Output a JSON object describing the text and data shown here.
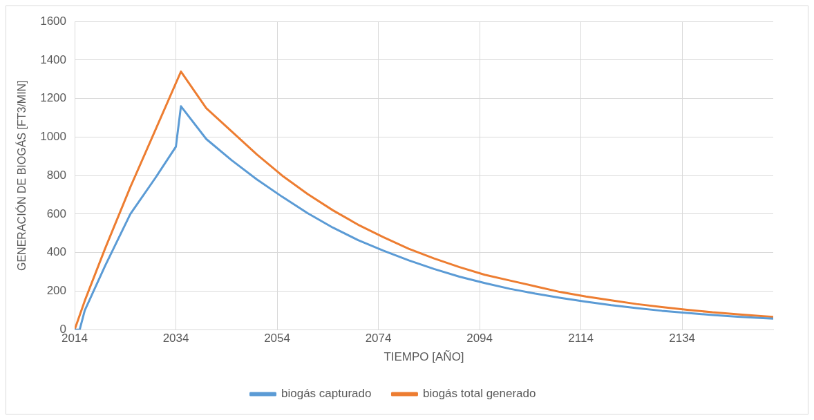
{
  "chart_data": {
    "type": "line",
    "xlabel": "TIEMPO [AÑO]",
    "ylabel": "GENERACIÓN DE BIOGÁS [FT3/MIN]",
    "xlim": [
      2014,
      2152
    ],
    "xticks": [
      2014,
      2034,
      2054,
      2074,
      2094,
      2114,
      2134
    ],
    "ylim": [
      0,
      1600
    ],
    "yticks": [
      0,
      200,
      400,
      600,
      800,
      1000,
      1200,
      1400,
      1600
    ],
    "grid": true,
    "legend": "bottom",
    "marker": "none",
    "line_style": "solid",
    "series": [
      {
        "name": "biogás capturado",
        "color": "#5b9bd5",
        "x": [
          2014,
          2015,
          2016,
          2020,
          2025,
          2030,
          2034,
          2035,
          2040,
          2045,
          2050,
          2055,
          2060,
          2065,
          2070,
          2075,
          2080,
          2085,
          2090,
          2095,
          2100,
          2105,
          2110,
          2115,
          2120,
          2125,
          2130,
          2135,
          2140,
          2145,
          2150,
          2152
        ],
        "values": [
          0,
          0,
          100,
          330,
          600,
          790,
          950,
          1160,
          990,
          880,
          780,
          690,
          605,
          530,
          465,
          410,
          360,
          315,
          275,
          242,
          212,
          187,
          165,
          145,
          127,
          112,
          98,
          87,
          76,
          67,
          60,
          57
        ]
      },
      {
        "name": "biogás total generado",
        "color": "#ed7d31",
        "x": [
          2014,
          2016,
          2020,
          2025,
          2030,
          2035,
          2040,
          2045,
          2050,
          2055,
          2060,
          2065,
          2070,
          2075,
          2080,
          2085,
          2090,
          2095,
          2100,
          2105,
          2110,
          2115,
          2120,
          2125,
          2130,
          2135,
          2140,
          2145,
          2150,
          2152
        ],
        "values": [
          0,
          150,
          420,
          740,
          1040,
          1340,
          1150,
          1030,
          910,
          800,
          705,
          620,
          545,
          480,
          420,
          370,
          325,
          285,
          255,
          225,
          195,
          172,
          152,
          133,
          117,
          103,
          90,
          80,
          70,
          66
        ]
      }
    ]
  }
}
